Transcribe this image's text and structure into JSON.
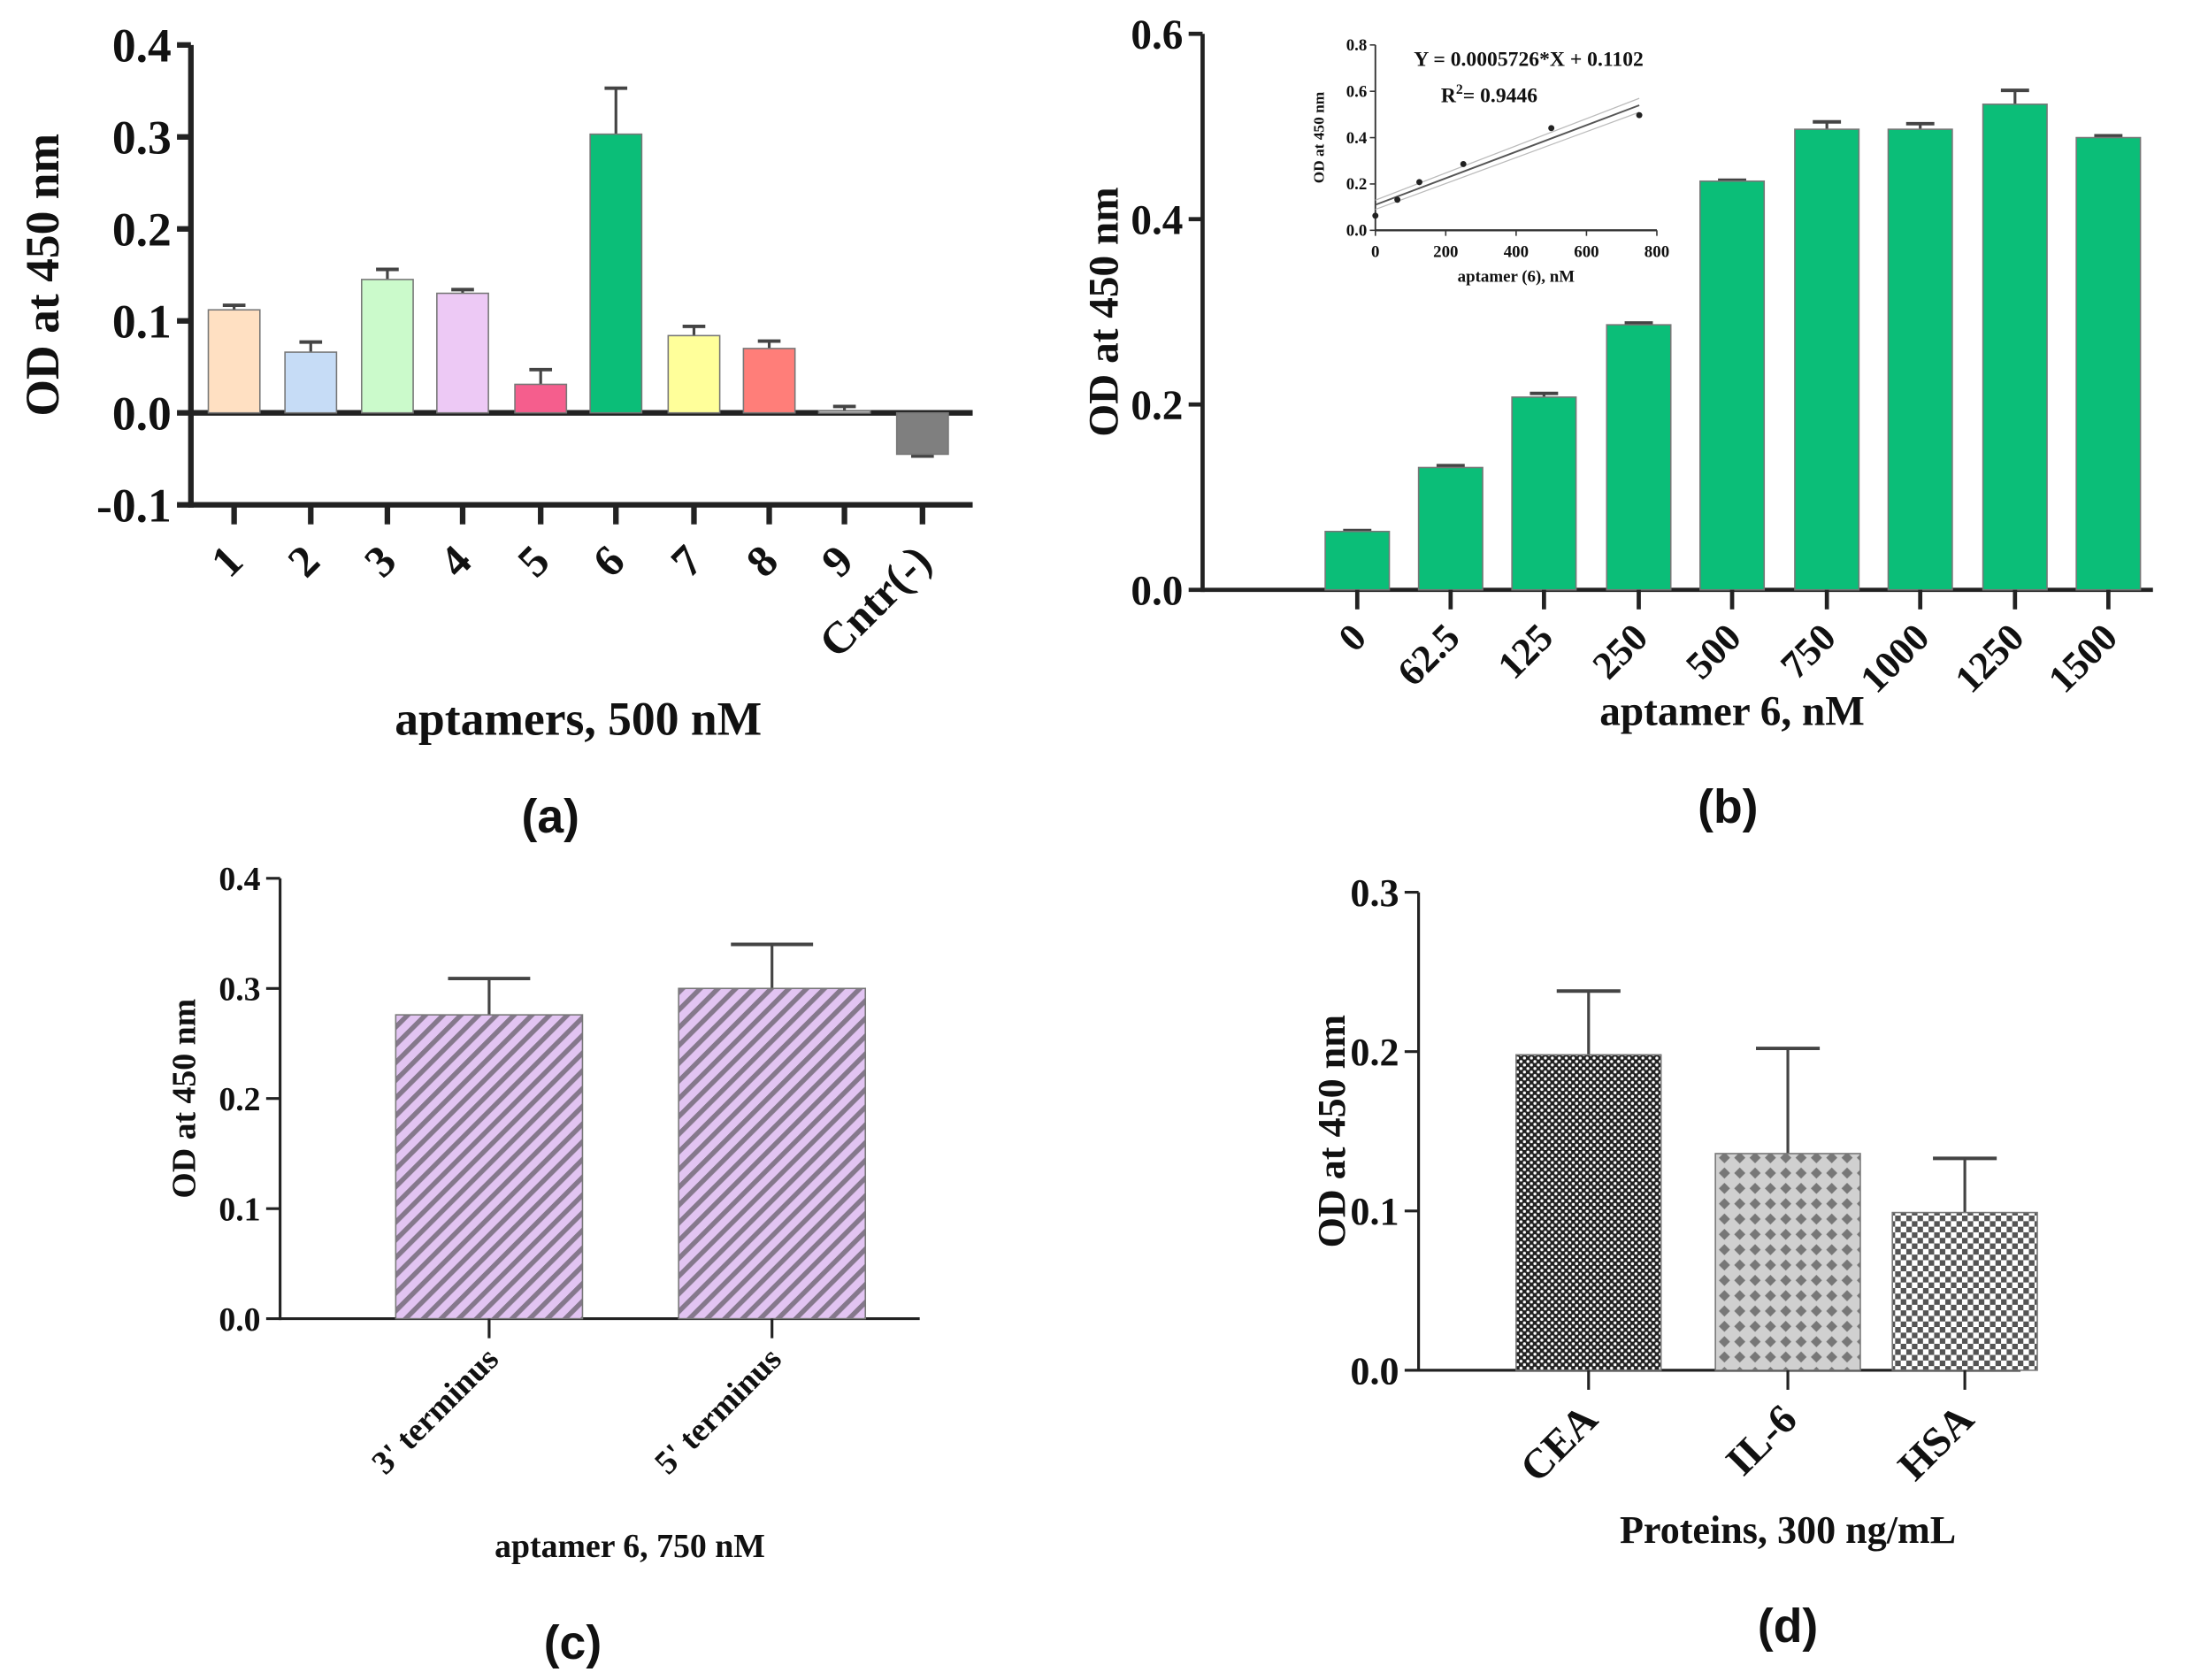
{
  "chart_data": [
    {
      "id": "a",
      "type": "bar",
      "panel_label": "(a)",
      "xlabel": "aptamers, 500 nM",
      "ylabel": "OD at 450 nm",
      "ylim": [
        -0.1,
        0.4
      ],
      "yticks": [
        "-0.1",
        "0.0",
        "0.1",
        "0.2",
        "0.3",
        "0.4"
      ],
      "categories": [
        "1",
        "2",
        "3",
        "4",
        "5",
        "6",
        "7",
        "8",
        "9",
        "Cntr(-)"
      ],
      "values": [
        0.112,
        0.066,
        0.145,
        0.13,
        0.031,
        0.303,
        0.084,
        0.07,
        0.002,
        -0.045
      ],
      "errors": [
        0.005,
        0.011,
        0.011,
        0.004,
        0.016,
        0.05,
        0.01,
        0.008,
        0.005,
        0.002
      ],
      "colors": [
        "#FFE0C2",
        "#C6DCF6",
        "#CBFACB",
        "#EDC9F5",
        "#F55E8D",
        "#0BBE78",
        "#FFFF9A",
        "#FF7E79",
        "#E6E6E6",
        "#7F7F7F"
      ]
    },
    {
      "id": "b",
      "type": "bar",
      "panel_label": "(b)",
      "xlabel": "aptamer 6, nM",
      "ylabel": "OD at 450 nm",
      "ylim": [
        0,
        0.6
      ],
      "yticks": [
        "0.0",
        "0.2",
        "0.4",
        "0.6"
      ],
      "categories": [
        "0",
        "62.5",
        "125",
        "250",
        "500",
        "750",
        "1000",
        "1250",
        "1500"
      ],
      "values": [
        0.063,
        0.132,
        0.208,
        0.286,
        0.441,
        0.497,
        0.497,
        0.524,
        0.488
      ],
      "errors": [
        0.001,
        0.002,
        0.004,
        0.002,
        0.001,
        0.008,
        0.006,
        0.015,
        0.002
      ],
      "color": "#0BBE78",
      "inset": {
        "type": "scatter",
        "xlabel": "aptamer (6), nM",
        "ylabel": "OD at 450 nm",
        "xlim": [
          0,
          800
        ],
        "ylim": [
          0,
          0.8
        ],
        "xticks": [
          "0",
          "200",
          "400",
          "600",
          "800"
        ],
        "yticks": [
          "0.0",
          "0.2",
          "0.4",
          "0.6",
          "0.8"
        ],
        "x": [
          0,
          62.5,
          125,
          250,
          500,
          750
        ],
        "y": [
          0.063,
          0.132,
          0.208,
          0.286,
          0.441,
          0.497
        ],
        "fit": {
          "slope": 0.0005726,
          "intercept": 0.1102
        },
        "equation": "Y = 0.0005726*X + 0.1102",
        "r2_label": "R",
        "r2_sup": "2",
        "r2_value": "= 0.9446"
      }
    },
    {
      "id": "c",
      "type": "bar",
      "panel_label": "(c)",
      "xlabel": "aptamer 6, 750 nM",
      "ylabel": "OD at 450 nm",
      "ylim": [
        0,
        0.4
      ],
      "yticks": [
        "0.0",
        "0.1",
        "0.2",
        "0.3",
        "0.4"
      ],
      "categories": [
        "3' terminus",
        "5' terminus"
      ],
      "values": [
        0.276,
        0.3
      ],
      "errors": [
        0.033,
        0.04
      ],
      "color": "#E2C4F2"
    },
    {
      "id": "d",
      "type": "bar",
      "panel_label": "(d)",
      "xlabel": "Proteins, 300 ng/mL",
      "ylabel": "OD at 450 nm",
      "ylim": [
        0,
        0.3
      ],
      "yticks": [
        "0.0",
        "0.1",
        "0.2",
        "0.3"
      ],
      "categories": [
        "CEA",
        "IL-6",
        "HSA"
      ],
      "values": [
        0.198,
        0.136,
        0.099
      ],
      "errors": [
        0.04,
        0.066,
        0.034
      ]
    }
  ]
}
